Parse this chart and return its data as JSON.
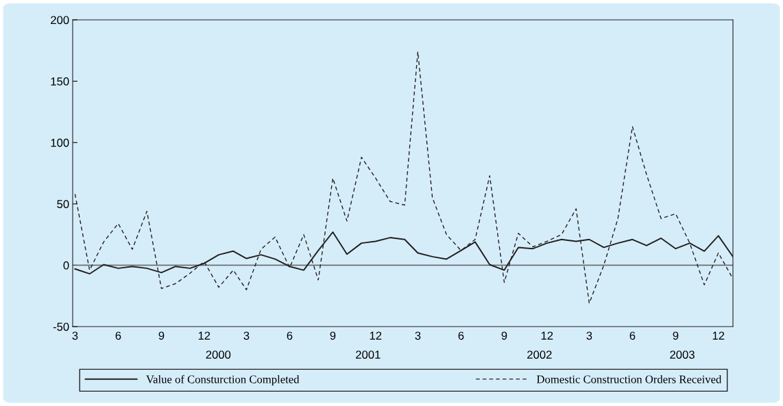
{
  "chart_data": {
    "type": "line",
    "x": [
      "2000-03",
      "2000-04",
      "2000-05",
      "2000-06",
      "2000-07",
      "2000-08",
      "2000-09",
      "2000-10",
      "2000-11",
      "2000-12",
      "2001-01",
      "2001-02",
      "2001-03",
      "2001-04",
      "2001-05",
      "2001-06",
      "2001-07",
      "2001-08",
      "2001-09",
      "2001-10",
      "2001-11",
      "2001-12",
      "2002-01",
      "2002-02",
      "2002-03",
      "2002-04",
      "2002-05",
      "2002-06",
      "2002-07",
      "2002-08",
      "2002-09",
      "2002-10",
      "2002-11",
      "2002-12",
      "2003-01",
      "2003-02",
      "2003-03",
      "2003-04",
      "2003-05",
      "2003-06",
      "2003-07",
      "2003-08",
      "2003-09",
      "2003-10",
      "2003-11",
      "2003-12",
      "2004-01"
    ],
    "series": [
      {
        "name": "Value of Consturction Completed",
        "color": "#231f20",
        "line_style": "solid",
        "values": [
          -3,
          -7,
          0.5,
          -2.5,
          -1,
          -2.5,
          -6,
          -1,
          -2.5,
          1.5,
          8.5,
          11.5,
          5.5,
          8.5,
          5,
          -1,
          -4,
          12,
          27,
          9,
          18,
          19.5,
          22.5,
          21,
          10,
          7,
          5,
          12,
          19,
          0.5,
          -4,
          14.5,
          13.5,
          18,
          21,
          19.5,
          21,
          14.5,
          18,
          21,
          16,
          22,
          13.5,
          18,
          11.5,
          24,
          7
        ]
      },
      {
        "name": "Domestic Construction Orders Received",
        "color": "#231f20",
        "line_style": "dashed",
        "values": [
          58,
          -4,
          19,
          34,
          13,
          44,
          -19,
          -15,
          -6.5,
          3,
          -18,
          -4,
          -20,
          13,
          23,
          -2,
          25,
          -12,
          71,
          36,
          88,
          71,
          52,
          49,
          174,
          55,
          25,
          12,
          21,
          73,
          -14,
          26,
          15,
          19.5,
          25,
          46,
          -31,
          0,
          38,
          113,
          74,
          38,
          42,
          18,
          -16,
          10,
          -11
        ]
      }
    ],
    "xlim": [
      "2000-02-25",
      "2004-01-01"
    ],
    "xticks": [
      {
        "value": "2000-03",
        "label": "3"
      },
      {
        "value": "2000-06",
        "label": "6"
      },
      {
        "value": "2000-09",
        "label": "9"
      },
      {
        "value": "2000-12",
        "label": "12"
      },
      {
        "value": "2001-03",
        "label": "3"
      },
      {
        "value": "2001-06",
        "label": "6"
      },
      {
        "value": "2001-09",
        "label": "9"
      },
      {
        "value": "2001-12",
        "label": "12"
      },
      {
        "value": "2002-03",
        "label": "3"
      },
      {
        "value": "2002-06",
        "label": "6"
      },
      {
        "value": "2002-09",
        "label": "9"
      },
      {
        "value": "2002-12",
        "label": "12"
      },
      {
        "value": "2003-03",
        "label": "3"
      },
      {
        "value": "2003-06",
        "label": "6"
      },
      {
        "value": "2003-09",
        "label": "9"
      },
      {
        "value": "2003-12",
        "label": "12"
      }
    ],
    "ylim": [
      -50,
      200
    ],
    "yticks": [
      -50,
      0,
      50,
      100,
      150,
      200
    ],
    "ref_lines": [
      {
        "axis": "y",
        "value": 0,
        "color": "#6d6e71"
      }
    ],
    "x2lim": [
      "2000-02-25",
      "2004-01-01"
    ],
    "x2ticks": [
      {
        "value": "2000-12-31",
        "label": "2000"
      },
      {
        "value": "2001-11-15",
        "label": "2001"
      },
      {
        "value": "2002-11-15",
        "label": "2002"
      },
      {
        "value": "2003-09-15",
        "label": "2003"
      }
    ],
    "grid": false,
    "legend": "bottom",
    "marker": "none"
  }
}
